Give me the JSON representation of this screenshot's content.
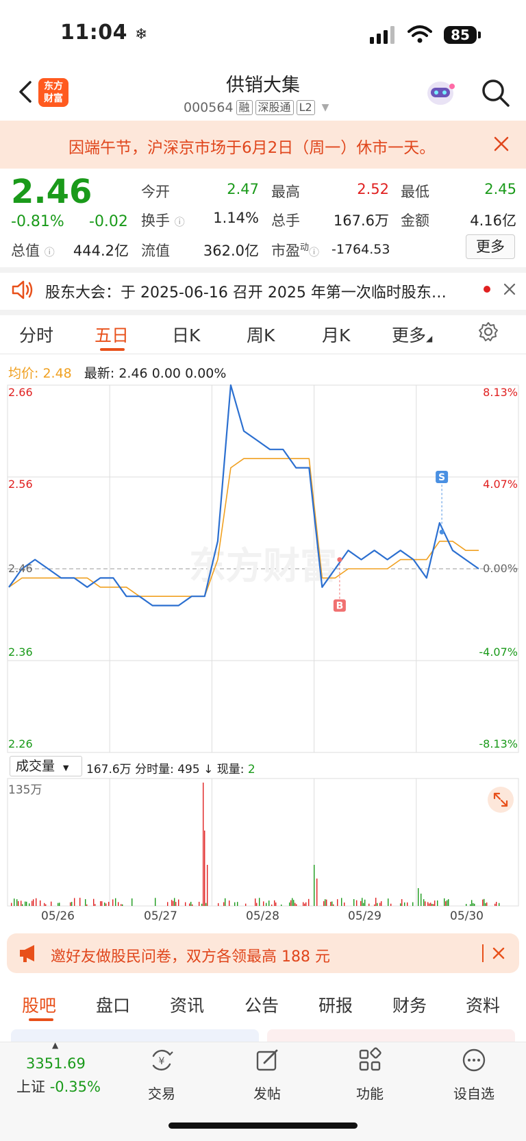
{
  "status": {
    "time": "11:04",
    "battery": "85"
  },
  "header": {
    "logo_line1": "东方",
    "logo_line2": "财富",
    "title": "供销大集",
    "code": "000564",
    "tags": [
      "融",
      "深股通",
      "L2"
    ]
  },
  "notice": {
    "text": "因端午节，沪深京市场于6月2日（周一）休市一天。"
  },
  "quote": {
    "price": "2.46",
    "change_pct": "-0.81%",
    "change_abs": "-0.02",
    "open_label": "今开",
    "open": "2.47",
    "high_label": "最高",
    "high": "2.52",
    "low_label": "最低",
    "low": "2.45",
    "turnover_label": "换手",
    "turnover": "1.14%",
    "volume_label": "总手",
    "volume": "167.6万",
    "amount_label": "金额",
    "amount": "4.16亿",
    "mcap_label": "总值",
    "mcap": "444.2亿",
    "float_label": "流值",
    "float": "362.0亿",
    "pe_label": "市盈",
    "pe_sup": "动",
    "pe": "-1764.53",
    "more": "更多"
  },
  "announcement": {
    "text": "股东大会：于 2025-06-16 召开 2025 年第一次临时股东…"
  },
  "chart_tabs": [
    "分时",
    "五日",
    "日K",
    "周K",
    "月K",
    "更多"
  ],
  "chart_tab_active": "五日",
  "chart_info": {
    "avg_label": "均价:",
    "avg_value": "2.48",
    "latest_label": "最新:",
    "latest_value": "2.46",
    "latest_chg": "0.00",
    "latest_pct": "0.00%"
  },
  "chart_data": {
    "type": "line",
    "y_left_ticks": [
      "2.66",
      "2.56",
      "2.46",
      "2.36",
      "2.26"
    ],
    "y_right_ticks": [
      "8.13%",
      "4.07%",
      "0.00%",
      "-4.07%",
      "-8.13%"
    ],
    "ylim": [
      2.26,
      2.66
    ],
    "days": [
      "05/26",
      "05/27",
      "05/28",
      "05/29",
      "05/30"
    ],
    "series": [
      {
        "name": "最新",
        "color": "#2b6fd0",
        "values": [
          2.44,
          2.46,
          2.47,
          2.46,
          2.45,
          2.45,
          2.44,
          2.45,
          2.45,
          2.43,
          2.43,
          2.42,
          2.42,
          2.42,
          2.43,
          2.43,
          2.49,
          2.66,
          2.61,
          2.6,
          2.59,
          2.59,
          2.57,
          2.57,
          2.44,
          2.46,
          2.48,
          2.47,
          2.48,
          2.47,
          2.48,
          2.47,
          2.45,
          2.51,
          2.48,
          2.47,
          2.46
        ]
      },
      {
        "name": "均价",
        "color": "#f0a020",
        "values": [
          2.44,
          2.45,
          2.45,
          2.45,
          2.45,
          2.45,
          2.45,
          2.44,
          2.44,
          2.44,
          2.43,
          2.43,
          2.43,
          2.43,
          2.43,
          2.43,
          2.47,
          2.57,
          2.58,
          2.58,
          2.58,
          2.58,
          2.58,
          2.58,
          2.45,
          2.45,
          2.46,
          2.46,
          2.46,
          2.46,
          2.47,
          2.47,
          2.47,
          2.49,
          2.49,
          2.48,
          2.48
        ]
      }
    ],
    "markers": [
      {
        "label": "B",
        "day": "05/29"
      },
      {
        "label": "S",
        "day": "05/30"
      }
    ],
    "watermark": "东方财富"
  },
  "volume": {
    "selector": "成交量",
    "total": "167.6万",
    "fen_label": "分时量:",
    "fen_value": "495",
    "now_label": "现量:",
    "now_value": "2",
    "max_label": "135万"
  },
  "invite": {
    "text": "邀好友做股民问卷，双方各领最高 188 元"
  },
  "bottom_tabs": [
    "股吧",
    "盘口",
    "资讯",
    "公告",
    "研报",
    "财务",
    "资料"
  ],
  "bottom_nav": {
    "index_value": "3351.69",
    "index_name": "上证",
    "index_change": "-0.35%",
    "items": [
      "交易",
      "发帖",
      "功能",
      "设自选"
    ]
  }
}
